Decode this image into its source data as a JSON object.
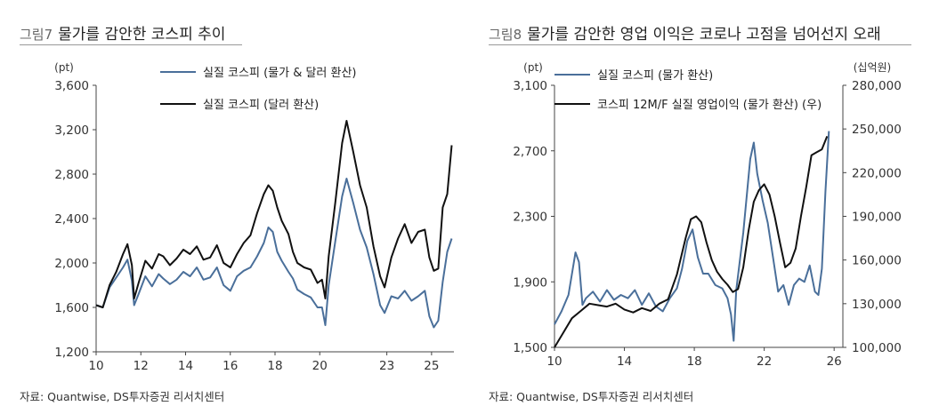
{
  "charts": [
    {
      "fig_num": "그림7",
      "title": "물가를 감안한 코스피 추이",
      "source": "자료: Quantwise, DS투자증권 리서치센터"
    },
    {
      "fig_num": "그림8",
      "title": "물가를 감안한 영업 이익은 코로나 고점을 넘어선지 오래",
      "source": "자료: Quantwise, DS투자증권 리서치센터"
    }
  ],
  "chart_data": [
    {
      "type": "line",
      "title": "물가를 감안한 코스피 추이",
      "ylabel": "(pt)",
      "ylim": [
        1200,
        3600
      ],
      "yticks": [
        "1,200",
        "1,600",
        "2,000",
        "2,400",
        "2,800",
        "3,200",
        "3,600"
      ],
      "xlim": [
        2010,
        2026
      ],
      "xticks": [
        "10",
        "12",
        "14",
        "16",
        "18",
        "20",
        "23",
        "25"
      ],
      "grid": false,
      "legend_position": "top",
      "series": [
        {
          "name": "실질 코스피 (물가 & 달러 환산)",
          "color": "#4a6f9a",
          "x": [
            2010.0,
            2010.3,
            2010.6,
            2010.9,
            2011.2,
            2011.4,
            2011.6,
            2011.7,
            2011.9,
            2012.2,
            2012.5,
            2012.8,
            2013.0,
            2013.3,
            2013.6,
            2013.9,
            2014.2,
            2014.5,
            2014.8,
            2015.1,
            2015.4,
            2015.7,
            2016.0,
            2016.3,
            2016.6,
            2016.9,
            2017.2,
            2017.5,
            2017.7,
            2017.9,
            2018.1,
            2018.3,
            2018.6,
            2018.8,
            2019.0,
            2019.3,
            2019.6,
            2019.9,
            2020.1,
            2020.25,
            2020.4,
            2020.7,
            2021.0,
            2021.2,
            2021.5,
            2021.8,
            2022.1,
            2022.4,
            2022.7,
            2022.9,
            2023.2,
            2023.5,
            2023.8,
            2024.1,
            2024.4,
            2024.7,
            2024.9,
            2025.1,
            2025.3,
            2025.5,
            2025.7,
            2025.9
          ],
          "values": [
            1620,
            1600,
            1780,
            1870,
            1960,
            2030,
            1840,
            1620,
            1720,
            1880,
            1790,
            1900,
            1860,
            1810,
            1850,
            1920,
            1880,
            1960,
            1850,
            1870,
            1960,
            1800,
            1750,
            1880,
            1930,
            1960,
            2060,
            2180,
            2320,
            2280,
            2100,
            2020,
            1920,
            1860,
            1760,
            1720,
            1690,
            1600,
            1600,
            1440,
            1800,
            2200,
            2600,
            2760,
            2540,
            2300,
            2140,
            1900,
            1620,
            1550,
            1700,
            1680,
            1750,
            1660,
            1700,
            1750,
            1520,
            1420,
            1480,
            1830,
            2100,
            2220
          ]
        },
        {
          "name": "실질 코스피 (달러 환산)",
          "color": "#111111",
          "x": [
            2010.0,
            2010.3,
            2010.6,
            2010.9,
            2011.2,
            2011.4,
            2011.6,
            2011.7,
            2011.9,
            2012.2,
            2012.5,
            2012.8,
            2013.0,
            2013.3,
            2013.6,
            2013.9,
            2014.2,
            2014.5,
            2014.8,
            2015.1,
            2015.4,
            2015.7,
            2016.0,
            2016.3,
            2016.6,
            2016.9,
            2017.2,
            2017.5,
            2017.7,
            2017.9,
            2018.1,
            2018.3,
            2018.6,
            2018.8,
            2019.0,
            2019.3,
            2019.6,
            2019.9,
            2020.1,
            2020.25,
            2020.4,
            2020.7,
            2021.0,
            2021.2,
            2021.5,
            2021.8,
            2022.1,
            2022.4,
            2022.7,
            2022.9,
            2023.2,
            2023.5,
            2023.8,
            2024.1,
            2024.4,
            2024.7,
            2024.9,
            2025.1,
            2025.3,
            2025.5,
            2025.7,
            2025.9
          ],
          "values": [
            1620,
            1600,
            1800,
            1920,
            2080,
            2170,
            1980,
            1680,
            1820,
            2020,
            1950,
            2080,
            2060,
            1980,
            2040,
            2120,
            2080,
            2150,
            2030,
            2050,
            2160,
            2000,
            1960,
            2080,
            2180,
            2250,
            2450,
            2620,
            2700,
            2650,
            2500,
            2380,
            2260,
            2100,
            2000,
            1960,
            1940,
            1820,
            1850,
            1680,
            2060,
            2550,
            3080,
            3280,
            3000,
            2700,
            2500,
            2150,
            1880,
            1780,
            2050,
            2220,
            2350,
            2180,
            2280,
            2300,
            2050,
            1930,
            1950,
            2500,
            2620,
            3060
          ]
        }
      ]
    },
    {
      "type": "line",
      "title": "물가를 감안한 영업 이익은 코로나 고점을 넘어선지 오래",
      "ylabel": "(pt)",
      "y2label": "(십억원)",
      "ylim": [
        1500,
        3100
      ],
      "yticks": [
        "1,500",
        "1,900",
        "2,300",
        "2,700",
        "3,100"
      ],
      "y2lim": [
        100000,
        280000
      ],
      "y2ticks": [
        "100,000",
        "130,000",
        "160,000",
        "190,000",
        "220,000",
        "250,000",
        "280,000"
      ],
      "xlim": [
        2010,
        2026.5
      ],
      "xticks": [
        "10",
        "14",
        "18",
        "22",
        "26"
      ],
      "grid": false,
      "legend_position": "top",
      "series": [
        {
          "name": "실질 코스피 (물가 환산)",
          "axis": "left",
          "color": "#4a6f9a",
          "x": [
            2010.0,
            2010.4,
            2010.8,
            2011.2,
            2011.4,
            2011.6,
            2011.8,
            2012.2,
            2012.6,
            2013.0,
            2013.4,
            2013.8,
            2014.2,
            2014.6,
            2015.0,
            2015.4,
            2015.8,
            2016.2,
            2016.6,
            2017.0,
            2017.3,
            2017.6,
            2017.9,
            2018.2,
            2018.5,
            2018.8,
            2019.2,
            2019.6,
            2019.9,
            2020.1,
            2020.25,
            2020.4,
            2020.8,
            2021.2,
            2021.4,
            2021.6,
            2021.9,
            2022.2,
            2022.5,
            2022.8,
            2023.1,
            2023.4,
            2023.7,
            2024.0,
            2024.3,
            2024.6,
            2024.9,
            2025.1,
            2025.3,
            2025.5,
            2025.7
          ],
          "values": [
            1640,
            1720,
            1820,
            2080,
            2020,
            1760,
            1800,
            1840,
            1780,
            1850,
            1790,
            1820,
            1800,
            1850,
            1760,
            1830,
            1750,
            1720,
            1800,
            1860,
            1980,
            2150,
            2220,
            2050,
            1950,
            1950,
            1880,
            1860,
            1800,
            1700,
            1540,
            1850,
            2200,
            2650,
            2750,
            2560,
            2400,
            2260,
            2050,
            1840,
            1880,
            1760,
            1880,
            1920,
            1900,
            2000,
            1840,
            1820,
            1980,
            2450,
            2820
          ]
        },
        {
          "name": "코스피 12M/F 실질 영업이익 (물가 환산) (우)",
          "axis": "right",
          "color": "#111111",
          "x": [
            2010.0,
            2010.5,
            2011.0,
            2011.5,
            2012.0,
            2012.5,
            2013.0,
            2013.5,
            2014.0,
            2014.5,
            2015.0,
            2015.5,
            2016.0,
            2016.5,
            2017.0,
            2017.5,
            2017.8,
            2018.1,
            2018.4,
            2018.7,
            2019.0,
            2019.3,
            2019.6,
            2019.9,
            2020.2,
            2020.5,
            2020.8,
            2021.1,
            2021.4,
            2021.7,
            2022.0,
            2022.3,
            2022.6,
            2022.9,
            2023.2,
            2023.5,
            2023.8,
            2024.1,
            2024.4,
            2024.7,
            2025.0,
            2025.3,
            2025.6
          ],
          "values": [
            100000,
            110000,
            120000,
            125000,
            130000,
            129000,
            128000,
            130000,
            126000,
            124000,
            127000,
            125000,
            130000,
            133000,
            150000,
            175000,
            188000,
            190000,
            186000,
            172000,
            160000,
            152000,
            147000,
            143000,
            138000,
            140000,
            155000,
            180000,
            200000,
            208000,
            212000,
            205000,
            190000,
            172000,
            155000,
            158000,
            168000,
            190000,
            210000,
            232000,
            234000,
            236000,
            245000
          ]
        }
      ]
    }
  ]
}
